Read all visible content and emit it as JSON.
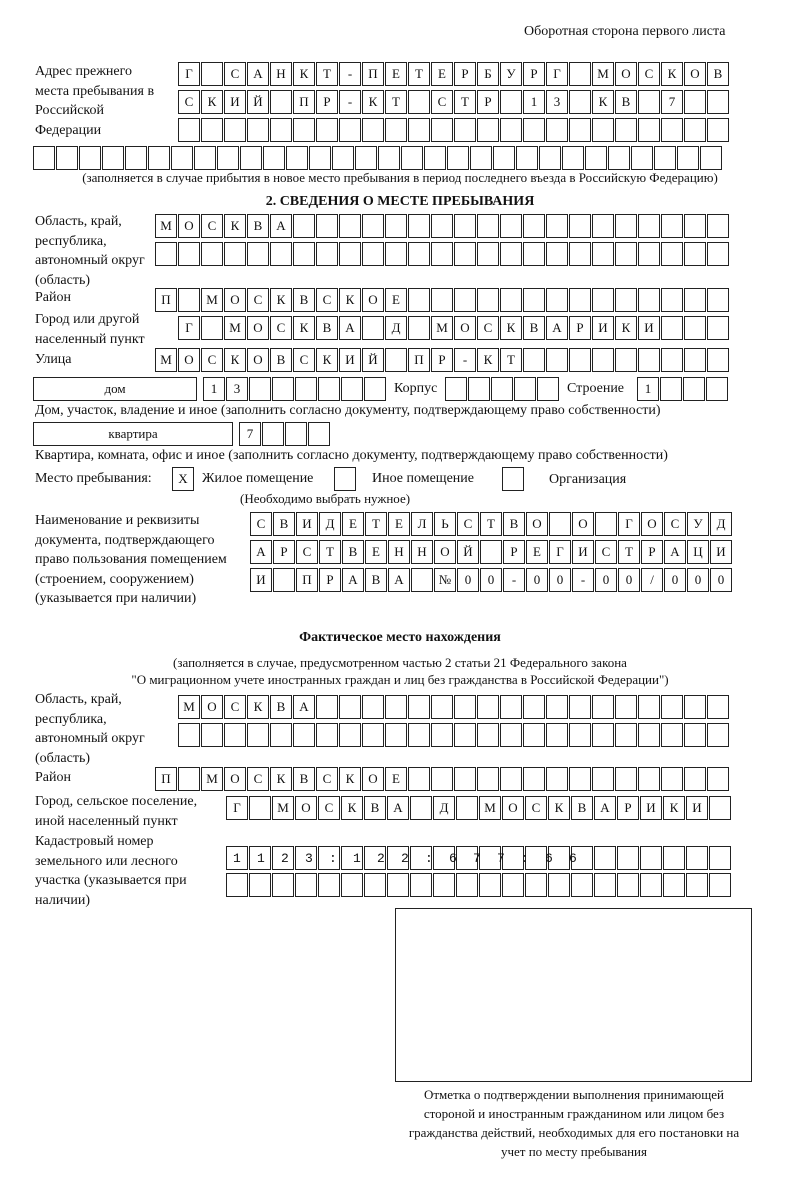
{
  "header": "Оборотная сторона первого листа",
  "prev_address": {
    "label": "Адрес прежнего места пребывания в Российской Федерации",
    "rows": [
      "Г САНКТ-ПЕТЕРБУРГ МОСКОВ",
      "СКИЙ ПР-КТ СТР 13 КВ 7  ",
      "                        ",
      "                              "
    ],
    "note": "(заполняется в случае прибытия в новое место пребывания в период последнего въезда в Российскую Федерацию)"
  },
  "section2": {
    "title": "2. СВЕДЕНИЯ О МЕСТЕ ПРЕБЫВАНИЯ",
    "region_label": "Область, край, республика, автономный округ (область)",
    "region_rows": [
      "МОСКВА                   ",
      "                         "
    ],
    "district_label": "Район",
    "district": "П МОСКВСКОЕ              ",
    "city_label": "Город или другой населенный пункт",
    "city": "Г МОСКВА Д МОСКВАРИКИ   ",
    "street_label": "Улица",
    "street": "МОСКОВСКИЙ ПР-КТ         ",
    "house_type": "дом",
    "house_number": "13      ",
    "korpus_label": "Корпус",
    "korpus": "     ",
    "building_label": "Строение",
    "building": "1   ",
    "house_note": "Дом, участок, владение и иное (заполнить согласно документу, подтверждающему право собственности)",
    "apt_type": "квартира",
    "apt_number": "7   ",
    "apt_note": "Квартира, комната, офис и иное (заполнить согласно документу, подтверждающему право собственности)",
    "stay_label": "Место пребывания:",
    "options": [
      {
        "label": "Жилое помещение",
        "mark": "X"
      },
      {
        "label": "Иное помещение",
        "mark": ""
      },
      {
        "label": "Организация",
        "mark": ""
      }
    ],
    "choose_note": "(Необходимо выбрать нужное)",
    "doc_label": "Наименование и реквизиты документа, подтверждающего право пользования помещением (строением, сооружением) (указывается при наличии)",
    "doc_rows": [
      "СВИДЕТЕЛЬСТВО О ГОСУД",
      "АРСТВЕННОЙ РЕГИСТРАЦИ",
      "И ПРАВА №00-00-00/000"
    ]
  },
  "actual": {
    "title": "Фактическое место нахождения",
    "note1": "(заполняется в случае, предусмотренном частью 2 статьи 21 Федерального закона",
    "note2": "\"О миграционном учете иностранных граждан и лиц без гражданства в Российской Федерации\")",
    "region_label": "Область, край, республика, автономный округ (область)",
    "region_rows": [
      "МОСКВА                  ",
      "                        "
    ],
    "district_label": "Район",
    "district": "П МОСКВСКОЕ              ",
    "city_label": "Город, сельское поселение, иной населенный пункт",
    "city": "Г МОСКВА Д МОСКВАРИКИ ",
    "cadastral_label": "Кадастровый номер земельного или лесного участка (указывается при наличии)",
    "cadastral_rows": [
      "1123:122:677:66       ",
      "                      "
    ]
  },
  "stamp_caption": "Отметка о подтверждении выполнения принимающей стороной и иностранным гражданином или лицом без гражданства действий, необходимых для его постановки на учет по месту пребывания"
}
